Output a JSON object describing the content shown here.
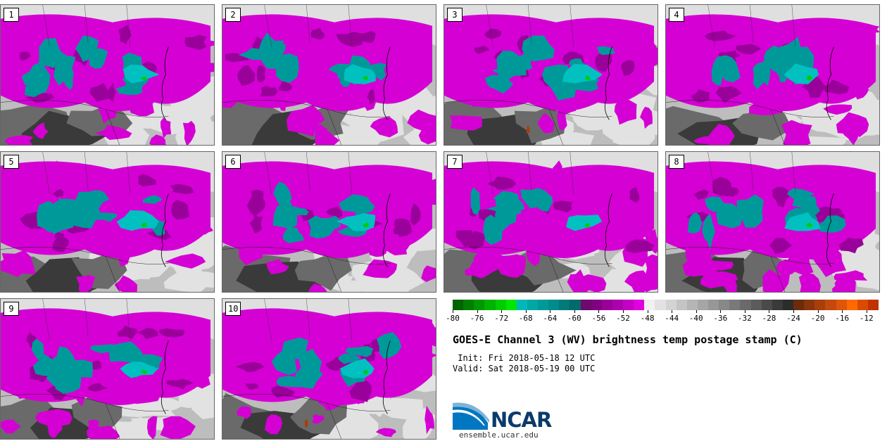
{
  "panels": [
    {
      "label": "1"
    },
    {
      "label": "2"
    },
    {
      "label": "3"
    },
    {
      "label": "4"
    },
    {
      "label": "5"
    },
    {
      "label": "6"
    },
    {
      "label": "7"
    },
    {
      "label": "8"
    },
    {
      "label": "9"
    },
    {
      "label": "10"
    }
  ],
  "colorbar": {
    "colors": [
      "#006400",
      "#007f00",
      "#009900",
      "#00b300",
      "#00cc00",
      "#00e600",
      "#00b8b8",
      "#00a7a7",
      "#009999",
      "#008c8c",
      "#007a7a",
      "#006a6a",
      "#6d0a6d",
      "#820082",
      "#990099",
      "#ad00ad",
      "#c400c4",
      "#e000e0",
      "#f0f0f0",
      "#e2e2e2",
      "#d3d3d3",
      "#c4c4c4",
      "#b5b5b5",
      "#a6a6a6",
      "#979797",
      "#888888",
      "#797979",
      "#6a6a6a",
      "#5b5b5b",
      "#4a4a4a",
      "#3a3a3a",
      "#2c2c2c",
      "#6b2c0c",
      "#8a350c",
      "#a63f0c",
      "#c24a0c",
      "#de560c",
      "#ff6a00",
      "#d94c00",
      "#c03200"
    ],
    "min": -80,
    "max": -10,
    "tick_labels": [
      "-80",
      "-76",
      "-72",
      "-68",
      "-64",
      "-60",
      "-56",
      "-52",
      "-48",
      "-44",
      "-40",
      "-36",
      "-32",
      "-28",
      "-24",
      "-20",
      "-16",
      "-12"
    ]
  },
  "title": "GOES-E Channel 3 (WV) brightness temp postage stamp (C)",
  "init": " Init: Fri 2018-05-18 12 UTC",
  "valid": "Valid: Sat 2018-05-19 00 UTC",
  "logo_text": "NCAR",
  "site": "ensemble.ucar.edu",
  "field_colors": {
    "bg": "#bdbdbd",
    "light": "#e2e2e2",
    "dark": "#6a6a6a",
    "darkest": "#3a3a3a",
    "magenta": "#d400d4",
    "darkmagenta": "#9a009a",
    "teal": "#009999",
    "cyan": "#00c0c0",
    "green": "#00cc00",
    "brown": "#a63f0c"
  }
}
